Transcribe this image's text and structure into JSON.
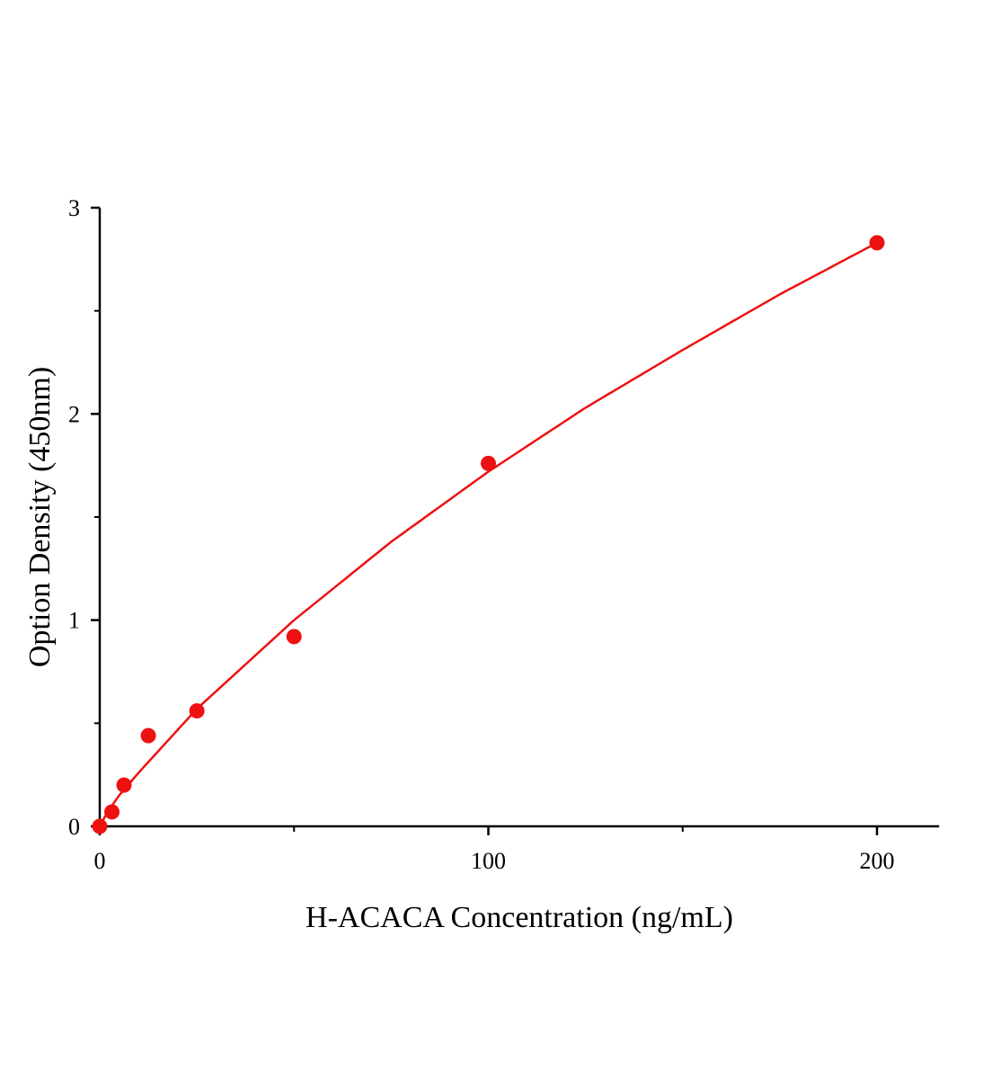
{
  "chart_data": {
    "type": "scatter",
    "title": "",
    "xlabel": "H-ACACA Concentration (ng/mL)",
    "ylabel": "Option Density (450nm)",
    "xlim": [
      0,
      216
    ],
    "ylim": [
      0,
      3
    ],
    "x_ticks": [
      "0",
      "100",
      "200"
    ],
    "x_tick_values": [
      0,
      100,
      200
    ],
    "x_minor_ticks": [
      50,
      150
    ],
    "y_ticks": [
      "0",
      "1",
      "2",
      "3"
    ],
    "y_tick_values": [
      0,
      1,
      2,
      3
    ],
    "y_minor_ticks": [
      0.5,
      1.5,
      2.5
    ],
    "grid": false,
    "legend": "none",
    "color": "#ee1111",
    "points": {
      "x": [
        0,
        3.125,
        6.25,
        12.5,
        25,
        50,
        100,
        200
      ],
      "y": [
        0.0,
        0.07,
        0.2,
        0.44,
        0.56,
        0.92,
        1.76,
        2.83
      ]
    },
    "fit_curve": {
      "x": [
        0,
        2,
        5,
        10,
        25,
        50,
        75,
        100,
        125,
        150,
        175,
        200
      ],
      "y": [
        0.0,
        0.07,
        0.15,
        0.26,
        0.57,
        1.0,
        1.38,
        1.72,
        2.03,
        2.31,
        2.58,
        2.83
      ]
    }
  }
}
